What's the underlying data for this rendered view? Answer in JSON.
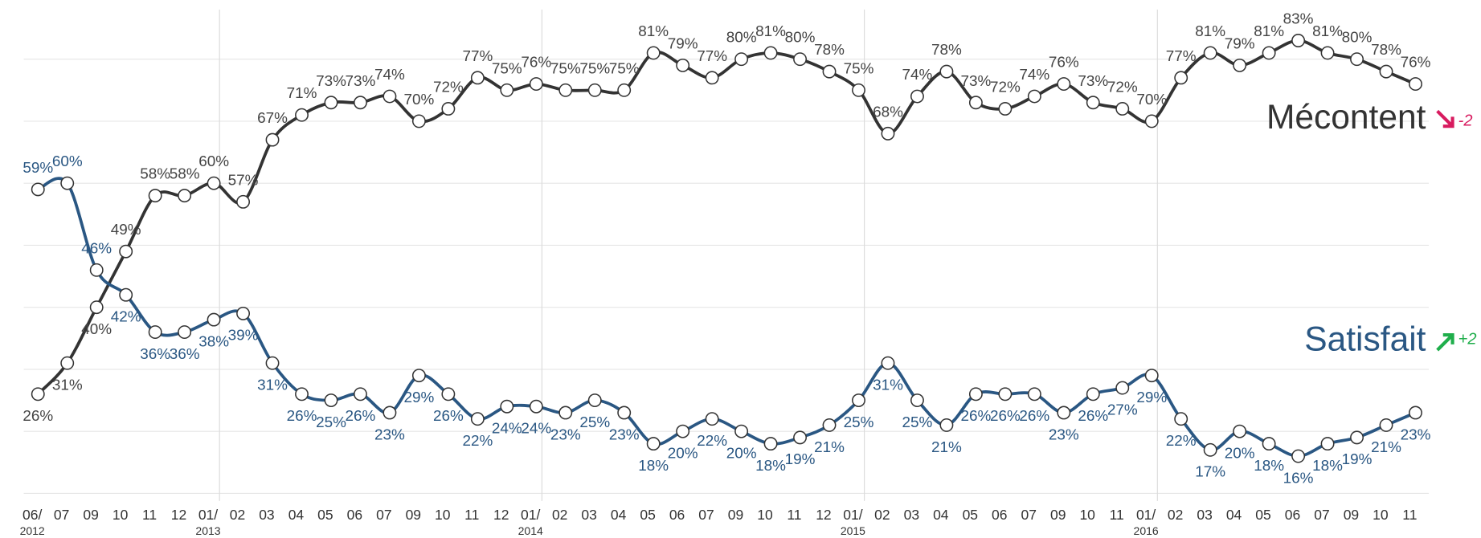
{
  "chart_data": {
    "type": "line",
    "categories": [
      "06/\n2012",
      "07",
      "09",
      "10",
      "11",
      "12",
      "01/\n2013",
      "02",
      "03",
      "04",
      "05",
      "06",
      "07",
      "09",
      "10",
      "11",
      "12",
      "01/\n2014",
      "02",
      "03",
      "04",
      "05",
      "06",
      "07",
      "09",
      "10",
      "11",
      "12",
      "01/\n2015",
      "02",
      "03",
      "04",
      "05",
      "06",
      "07",
      "09",
      "10",
      "11",
      "01/\n2016",
      "02",
      "03",
      "04",
      "05",
      "06",
      "07",
      "09",
      "10",
      "11"
    ],
    "series": [
      {
        "name": "Mécontent",
        "color": "#333333",
        "change": "-2",
        "change_color": "#d81b5f",
        "values": [
          26,
          31,
          40,
          49,
          58,
          58,
          60,
          57,
          67,
          71,
          73,
          73,
          74,
          70,
          72,
          77,
          75,
          76,
          75,
          75,
          75,
          81,
          79,
          77,
          80,
          81,
          80,
          78,
          75,
          68,
          74,
          78,
          73,
          72,
          74,
          76,
          73,
          72,
          70,
          77,
          81,
          79,
          81,
          83,
          81,
          80,
          78,
          76
        ],
        "value_labels": [
          "26%",
          "31%",
          "40%",
          "49%",
          "58%",
          "58%",
          "60%",
          "57%",
          "67%",
          "71%",
          "73%",
          "73%",
          "74%",
          "70%",
          "72%",
          "77%",
          "75%",
          "76%",
          "75%",
          "75%",
          "75%",
          "81%",
          "79%",
          "77%",
          "80%",
          "81%",
          "80%",
          "78%",
          "75%",
          "68%",
          "74%",
          "78%",
          "73%",
          "72%",
          "74%",
          "76%",
          "73%",
          "72%",
          "70%",
          "77%",
          "81%",
          "79%",
          "81%",
          "83%",
          "81%",
          "80%",
          "78%",
          "76%"
        ]
      },
      {
        "name": "Satisfait",
        "color": "#2a5783",
        "change": "+2",
        "change_color": "#1fae4b",
        "values": [
          59,
          60,
          46,
          42,
          36,
          36,
          38,
          39,
          31,
          26,
          25,
          26,
          23,
          29,
          26,
          22,
          24,
          24,
          23,
          25,
          23,
          18,
          20,
          22,
          20,
          18,
          19,
          21,
          25,
          31,
          25,
          21,
          26,
          26,
          26,
          23,
          26,
          27,
          29,
          22,
          17,
          20,
          18,
          16,
          18,
          19,
          21,
          23
        ],
        "value_labels": [
          "59%",
          "60%",
          "46%",
          "42%",
          "36%",
          "36%",
          "38%",
          "39%",
          "31%",
          "26%",
          "25%",
          "26%",
          "23%",
          "29%",
          "26%",
          "22%",
          "24%",
          "24%",
          "23%",
          "25%",
          "23%",
          "18%",
          "20%",
          "22%",
          "20%",
          "18%",
          "19%",
          "21%",
          "25%",
          "31%",
          "25%",
          "21%",
          "26%",
          "26%",
          "26%",
          "23%",
          "26%",
          "27%",
          "29%",
          "22%",
          "17%",
          "20%",
          "18%",
          "16%",
          "18%",
          "19%",
          "21%",
          "23%"
        ]
      }
    ],
    "ylim": [
      10,
      88
    ],
    "yticks": [
      10,
      20,
      30,
      40,
      50,
      60,
      70,
      80
    ],
    "grid": true
  }
}
